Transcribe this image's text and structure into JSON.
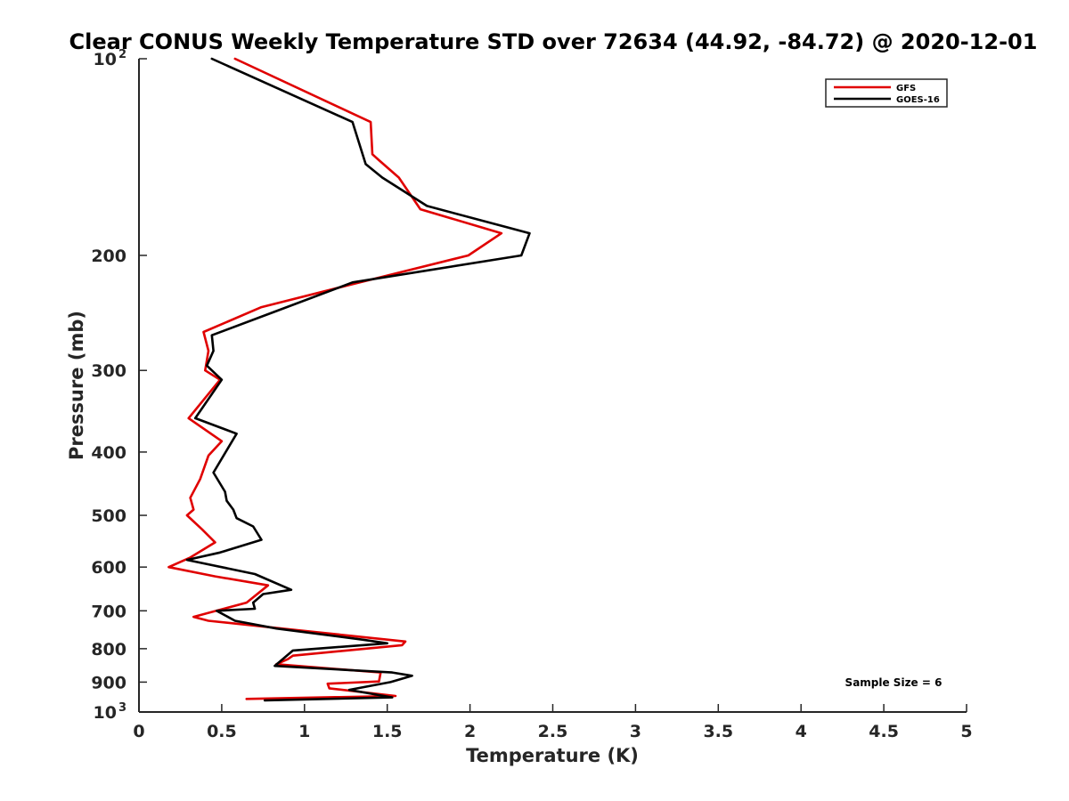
{
  "chart_data": {
    "type": "line",
    "title": "Clear CONUS Weekly Temperature STD over 72634 (44.92, -84.72) @ 2020-12-01",
    "xlabel": "Temperature (K)",
    "ylabel": "Pressure (mb)",
    "xlim": [
      0,
      5
    ],
    "ylim": [
      100,
      1000
    ],
    "yscale": "log",
    "y_reversed": true,
    "x_ticks": [
      0,
      0.5,
      1,
      1.5,
      2,
      2.5,
      3,
      3.5,
      4,
      4.5,
      5
    ],
    "x_tick_labels": [
      "0",
      "0.5",
      "1",
      "1.5",
      "2",
      "2.5",
      "3",
      "3.5",
      "4",
      "4.5",
      "5"
    ],
    "y_ticks": [
      100,
      200,
      300,
      400,
      500,
      600,
      700,
      800,
      900,
      1000
    ],
    "y_tick_labels": [
      {
        "base": "10",
        "exp": "2"
      },
      {
        "base": "200",
        "exp": ""
      },
      {
        "base": "300",
        "exp": ""
      },
      {
        "base": "400",
        "exp": ""
      },
      {
        "base": "500",
        "exp": ""
      },
      {
        "base": "600",
        "exp": ""
      },
      {
        "base": "700",
        "exp": ""
      },
      {
        "base": "800",
        "exp": ""
      },
      {
        "base": "900",
        "exp": ""
      },
      {
        "base": "10",
        "exp": "3"
      }
    ],
    "grid": false,
    "legend_position": "top-right",
    "annotation": "Sample Size = 6",
    "series": [
      {
        "name": "GFS",
        "color": "#e00000",
        "points": [
          [
            0.58,
            100
          ],
          [
            1.4,
            125
          ],
          [
            1.41,
            140
          ],
          [
            1.45,
            143
          ],
          [
            1.57,
            152
          ],
          [
            1.7,
            170
          ],
          [
            2.19,
            185
          ],
          [
            1.99,
            200
          ],
          [
            1.27,
            222
          ],
          [
            0.74,
            240
          ],
          [
            0.39,
            262
          ],
          [
            0.42,
            280
          ],
          [
            0.4,
            300
          ],
          [
            0.49,
            310
          ],
          [
            0.3,
            355
          ],
          [
            0.5,
            385
          ],
          [
            0.42,
            405
          ],
          [
            0.37,
            440
          ],
          [
            0.31,
            470
          ],
          [
            0.33,
            490
          ],
          [
            0.29,
            500
          ],
          [
            0.38,
            525
          ],
          [
            0.46,
            550
          ],
          [
            0.31,
            580
          ],
          [
            0.18,
            600
          ],
          [
            0.46,
            620
          ],
          [
            0.78,
            640
          ],
          [
            0.65,
            680
          ],
          [
            0.33,
            715
          ],
          [
            0.42,
            725
          ],
          [
            0.97,
            750
          ],
          [
            1.61,
            780
          ],
          [
            1.59,
            790
          ],
          [
            0.93,
            820
          ],
          [
            0.9,
            830
          ],
          [
            0.83,
            845
          ],
          [
            1.46,
            870
          ],
          [
            1.45,
            898
          ],
          [
            1.14,
            905
          ],
          [
            1.15,
            920
          ],
          [
            1.55,
            945
          ],
          [
            0.65,
            955
          ]
        ]
      },
      {
        "name": "GOES-16",
        "color": "#000000",
        "points": [
          [
            0.44,
            100
          ],
          [
            1.29,
            125
          ],
          [
            1.37,
            145
          ],
          [
            1.47,
            152
          ],
          [
            1.74,
            168
          ],
          [
            2.36,
            185
          ],
          [
            2.31,
            200
          ],
          [
            1.29,
            220
          ],
          [
            0.8,
            245
          ],
          [
            0.44,
            265
          ],
          [
            0.45,
            280
          ],
          [
            0.41,
            295
          ],
          [
            0.5,
            310
          ],
          [
            0.34,
            355
          ],
          [
            0.59,
            375
          ],
          [
            0.45,
            430
          ],
          [
            0.52,
            460
          ],
          [
            0.53,
            475
          ],
          [
            0.57,
            490
          ],
          [
            0.59,
            505
          ],
          [
            0.69,
            520
          ],
          [
            0.74,
            545
          ],
          [
            0.49,
            570
          ],
          [
            0.29,
            585
          ],
          [
            0.7,
            615
          ],
          [
            0.92,
            650
          ],
          [
            0.75,
            660
          ],
          [
            0.69,
            680
          ],
          [
            0.7,
            695
          ],
          [
            0.47,
            700
          ],
          [
            0.58,
            725
          ],
          [
            0.83,
            745
          ],
          [
            1.35,
            775
          ],
          [
            1.5,
            785
          ],
          [
            0.93,
            805
          ],
          [
            0.82,
            850
          ],
          [
            1.53,
            870
          ],
          [
            1.65,
            880
          ],
          [
            1.52,
            900
          ],
          [
            1.27,
            925
          ],
          [
            1.53,
            950
          ],
          [
            0.76,
            960
          ]
        ]
      }
    ]
  }
}
